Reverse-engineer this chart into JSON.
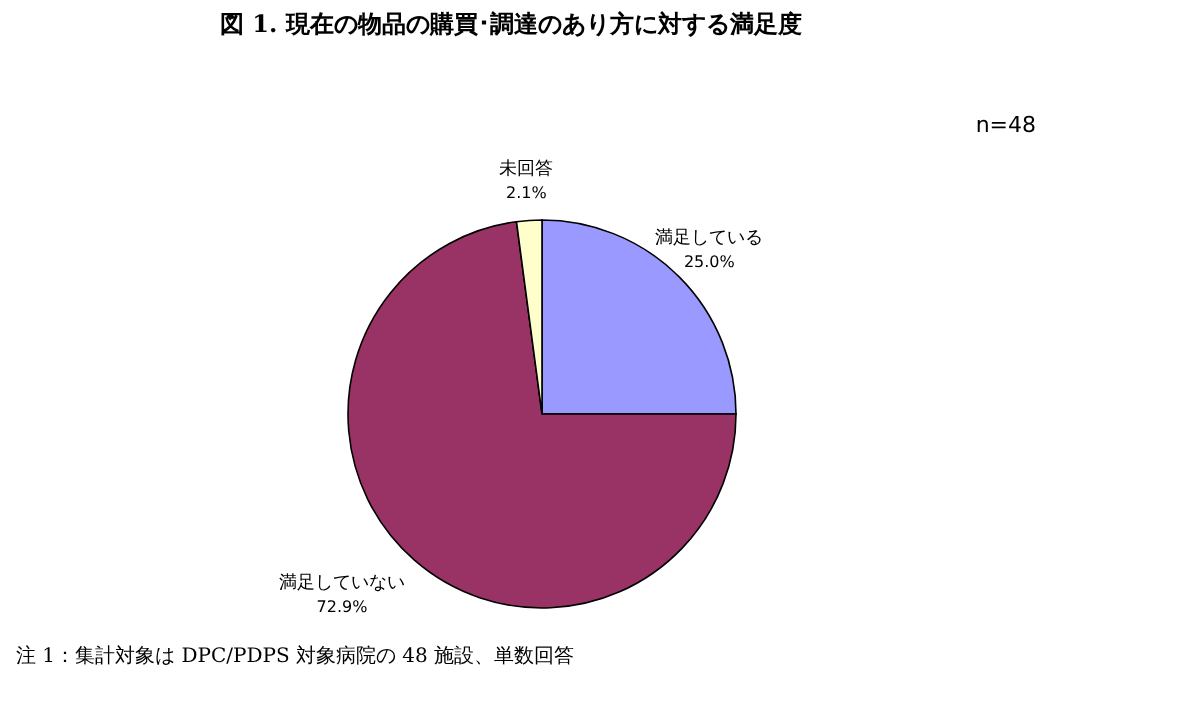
{
  "chart_data": {
    "type": "pie",
    "title": "図 1. 現在の物品の購買･調達のあり方に対する満足度",
    "categories": [
      "満足している",
      "満足していない",
      "未回答"
    ],
    "values": [
      25.0,
      72.9,
      2.1
    ],
    "value_labels": [
      "25.0%",
      "72.9%",
      "2.1%"
    ],
    "colors": [
      "#9999ff",
      "#993366",
      "#ffffcc"
    ],
    "annotations": [
      "n=48",
      "注 1：集計対象は DPC/PDPS 対象病院の 48 施設、単数回答"
    ]
  }
}
